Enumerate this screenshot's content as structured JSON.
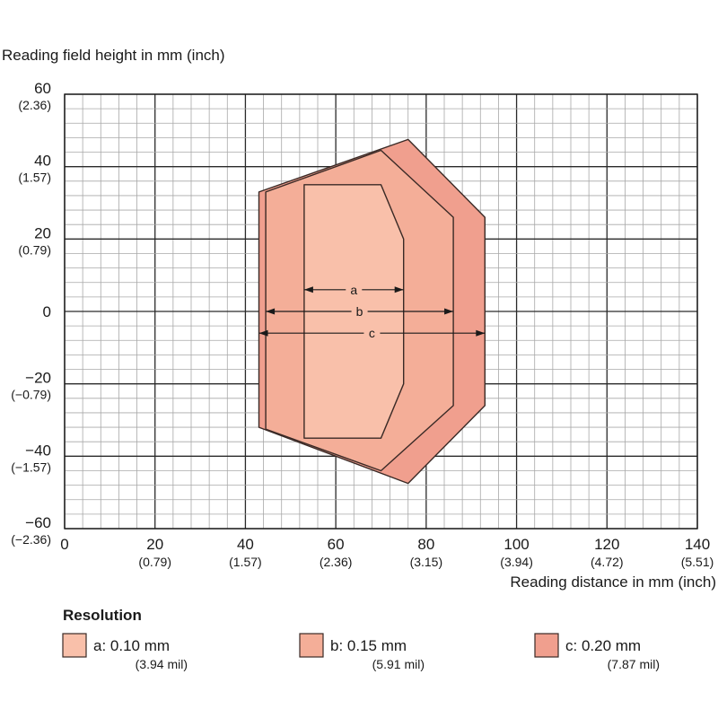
{
  "chart_data": {
    "type": "area",
    "ylabel": "Reading field height in mm (inch)",
    "xlabel": "Reading distance in mm (inch)",
    "xlim": [
      0,
      140
    ],
    "ylim": [
      -60,
      60
    ],
    "grid": true,
    "x_ticks": [
      {
        "value": 0,
        "label": "0",
        "sub": ""
      },
      {
        "value": 20,
        "label": "20",
        "sub": "(0.79)"
      },
      {
        "value": 40,
        "label": "40",
        "sub": "(1.57)"
      },
      {
        "value": 60,
        "label": "60",
        "sub": "(2.36)"
      },
      {
        "value": 80,
        "label": "80",
        "sub": "(3.15)"
      },
      {
        "value": 100,
        "label": "100",
        "sub": "(3.94)"
      },
      {
        "value": 120,
        "label": "120",
        "sub": "(4.72)"
      },
      {
        "value": 140,
        "label": "140",
        "sub": "(5.51)"
      }
    ],
    "y_ticks": [
      {
        "value": 60,
        "label": "60",
        "sub": "(2.36)"
      },
      {
        "value": 40,
        "label": "40",
        "sub": "(1.57)"
      },
      {
        "value": 20,
        "label": "20",
        "sub": "(0.79)"
      },
      {
        "value": 0,
        "label": "0",
        "sub": ""
      },
      {
        "value": -20,
        "label": "−20",
        "sub": "(−0.79)"
      },
      {
        "value": -40,
        "label": "−40",
        "sub": "(−1.57)"
      },
      {
        "value": -60,
        "label": "−60",
        "sub": "(−2.36)"
      }
    ],
    "series": [
      {
        "name": "c",
        "color": "#f09f8e",
        "points": [
          [
            43,
            33
          ],
          [
            76,
            47.5
          ],
          [
            93,
            26
          ],
          [
            93,
            -26
          ],
          [
            76,
            -47.5
          ],
          [
            43,
            -32
          ]
        ]
      },
      {
        "name": "b",
        "color": "#f4ae98",
        "points": [
          [
            44.5,
            33
          ],
          [
            70,
            44.5
          ],
          [
            86,
            26
          ],
          [
            86,
            -26
          ],
          [
            70,
            -44
          ],
          [
            44.5,
            -32.5
          ]
        ]
      },
      {
        "name": "a",
        "color": "#f9c0aa",
        "points": [
          [
            53,
            35
          ],
          [
            70,
            35
          ],
          [
            75,
            20
          ],
          [
            75,
            -20
          ],
          [
            70,
            -35
          ],
          [
            53,
            -35
          ]
        ]
      }
    ],
    "dimensions": [
      {
        "label": "a",
        "x1": 53,
        "x2": 75,
        "y": 6
      },
      {
        "label": "b",
        "x1": 44.5,
        "x2": 86,
        "y": 0
      },
      {
        "label": "c",
        "x1": 43,
        "x2": 93,
        "y": -6
      }
    ]
  },
  "legend": {
    "title": "Resolution",
    "items": [
      {
        "label": "a: 0.10 mm",
        "sub": "(3.94 mil)",
        "color": "#f9c0aa"
      },
      {
        "label": "b: 0.15 mm",
        "sub": "(5.91 mil)",
        "color": "#f4ae98"
      },
      {
        "label": "c: 0.20 mm",
        "sub": "(7.87 mil)",
        "color": "#f09f8e"
      }
    ]
  }
}
